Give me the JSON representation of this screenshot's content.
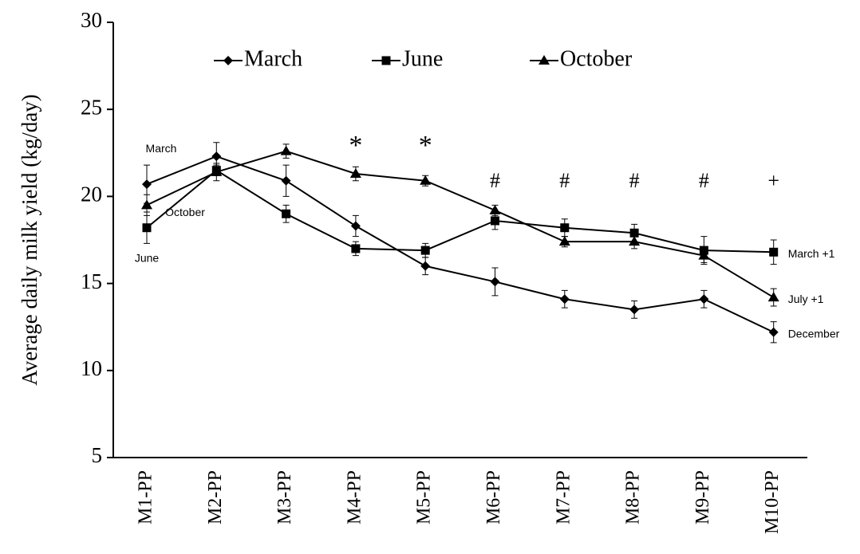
{
  "chart_data": {
    "type": "line",
    "y_label": "Average daily milk yield (kg/day)",
    "categories": [
      "M1-PP",
      "M2-PP",
      "M3-PP",
      "M4-PP",
      "M5-PP",
      "M6-PP",
      "M7-PP",
      "M8-PP",
      "M9-PP",
      "M10-PP"
    ],
    "series": [
      {
        "name": "March",
        "color": "#000000",
        "marker": "diamond",
        "start_label": "March",
        "end_label": "December",
        "values": [
          20.7,
          22.3,
          20.9,
          18.3,
          16.0,
          15.1,
          14.1,
          13.5,
          14.1,
          12.2
        ],
        "errors": [
          1.1,
          0.8,
          0.9,
          0.6,
          0.5,
          0.8,
          0.5,
          0.5,
          0.5,
          0.6
        ]
      },
      {
        "name": "June",
        "color": "#000000",
        "marker": "square",
        "start_label": "June",
        "end_label": "March +1",
        "values": [
          18.2,
          21.5,
          19.0,
          17.0,
          16.9,
          18.6,
          18.2,
          17.9,
          16.9,
          16.8
        ],
        "errors": [
          0.9,
          0.3,
          0.5,
          0.4,
          0.4,
          0.5,
          0.5,
          0.5,
          0.8,
          0.7
        ]
      },
      {
        "name": "October",
        "color": "#000000",
        "marker": "triangle",
        "start_label": "October",
        "end_label": "July +1",
        "values": [
          19.5,
          21.4,
          22.6,
          21.3,
          20.9,
          19.2,
          17.4,
          17.4,
          16.6,
          14.2
        ],
        "errors": [
          0.6,
          0.5,
          0.4,
          0.4,
          0.3,
          0.3,
          0.3,
          0.4,
          0.4,
          0.5
        ]
      }
    ],
    "significance": [
      null,
      null,
      null,
      "*",
      "*",
      "#",
      "#",
      "#",
      "#",
      "+"
    ],
    "ylim": [
      5,
      30
    ],
    "yticks": [
      5,
      10,
      15,
      20,
      25,
      30
    ],
    "grid": false,
    "legend": "top"
  }
}
